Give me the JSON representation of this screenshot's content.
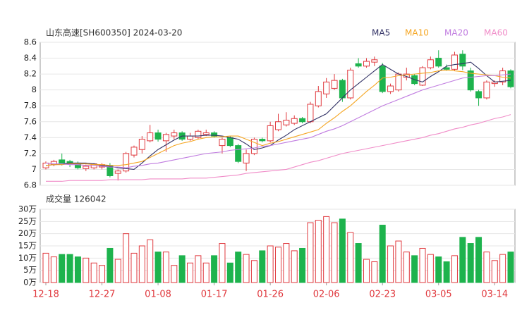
{
  "chart_data": [
    {
      "type": "candlestick",
      "title": "山东高速[SH600350] 2024-03-20",
      "categories": [
        "12-18",
        null,
        null,
        null,
        null,
        null,
        null,
        "12-27",
        null,
        null,
        null,
        null,
        null,
        null,
        "01-08",
        null,
        null,
        null,
        null,
        null,
        null,
        "01-17",
        null,
        null,
        null,
        null,
        null,
        null,
        "01-26",
        null,
        null,
        null,
        null,
        null,
        null,
        "02-06",
        null,
        null,
        null,
        null,
        null,
        null,
        "02-23",
        null,
        null,
        null,
        null,
        null,
        null,
        "03-05",
        null,
        null,
        null,
        null,
        null,
        null,
        "03-14",
        null,
        null
      ],
      "open": [
        7.02,
        7.06,
        7.12,
        7.1,
        7.08,
        7.01,
        7.02,
        7.03,
        7.05,
        6.95,
        6.98,
        7.18,
        7.25,
        7.36,
        7.46,
        7.36,
        7.42,
        7.46,
        7.38,
        7.4,
        7.44,
        7.46,
        7.3,
        7.4,
        7.3,
        7.08,
        7.2,
        7.38,
        7.36,
        7.5,
        7.56,
        7.58,
        7.64,
        7.6,
        7.8,
        7.95,
        8.02,
        8.12,
        7.9,
        8.33,
        8.3,
        8.35,
        8.3,
        7.98,
        8.0,
        8.16,
        8.18,
        8.06,
        8.28,
        8.4,
        8.28,
        8.26,
        8.45,
        8.24,
        7.98,
        7.9,
        8.08,
        8.1,
        8.24
      ],
      "high": [
        7.1,
        7.12,
        7.2,
        7.12,
        7.1,
        7.06,
        7.08,
        7.08,
        7.08,
        7.0,
        7.22,
        7.3,
        7.42,
        7.56,
        7.5,
        7.46,
        7.5,
        7.48,
        7.46,
        7.5,
        7.5,
        7.48,
        7.4,
        7.42,
        7.32,
        7.25,
        7.4,
        7.4,
        7.6,
        7.7,
        7.72,
        7.68,
        7.66,
        7.85,
        8.05,
        8.15,
        8.2,
        8.14,
        8.28,
        8.4,
        8.4,
        8.42,
        8.34,
        8.08,
        8.22,
        8.28,
        8.2,
        8.3,
        8.42,
        8.5,
        8.32,
        8.48,
        8.5,
        8.28,
        8.0,
        8.12,
        8.12,
        8.28,
        8.26
      ],
      "low": [
        7.0,
        7.04,
        7.05,
        7.03,
        7.0,
        6.98,
        7.0,
        7.0,
        6.9,
        6.86,
        6.96,
        7.15,
        7.2,
        7.34,
        7.35,
        7.22,
        7.38,
        7.36,
        7.36,
        7.38,
        7.42,
        7.4,
        7.2,
        7.28,
        7.08,
        6.98,
        7.18,
        7.34,
        7.34,
        7.48,
        7.54,
        7.56,
        7.58,
        7.58,
        7.78,
        7.9,
        8.0,
        7.85,
        7.88,
        8.28,
        8.28,
        8.3,
        7.96,
        7.95,
        7.98,
        8.12,
        8.06,
        8.05,
        8.26,
        8.28,
        8.24,
        8.24,
        8.25,
        7.98,
        7.8,
        7.88,
        8.04,
        8.06,
        8.02
      ],
      "close": [
        7.08,
        7.1,
        7.08,
        7.07,
        7.02,
        7.04,
        7.07,
        7.06,
        6.92,
        6.98,
        7.2,
        7.28,
        7.38,
        7.46,
        7.38,
        7.44,
        7.46,
        7.38,
        7.42,
        7.48,
        7.46,
        7.42,
        7.38,
        7.3,
        7.1,
        7.2,
        7.38,
        7.36,
        7.55,
        7.6,
        7.62,
        7.64,
        7.6,
        7.82,
        7.98,
        8.1,
        8.12,
        7.9,
        8.25,
        8.3,
        8.36,
        8.38,
        7.98,
        8.05,
        8.2,
        8.2,
        8.08,
        8.28,
        8.38,
        8.3,
        8.26,
        8.44,
        8.3,
        8.0,
        7.9,
        8.1,
        8.1,
        8.24,
        8.04
      ],
      "up_color": "#e0393e",
      "down_color": "#1db34d",
      "series": [
        {
          "name": "MA5",
          "color": "#333366",
          "values": [
            7.05,
            7.06,
            7.07,
            7.08,
            7.08,
            7.08,
            7.07,
            7.05,
            7.04,
            7.02,
            7.01,
            7.0,
            7.08,
            7.17,
            7.25,
            7.31,
            7.37,
            7.42,
            7.42,
            7.42,
            7.43,
            7.43,
            7.42,
            7.4,
            7.38,
            7.32,
            7.25,
            7.27,
            7.3,
            7.37,
            7.43,
            7.5,
            7.55,
            7.6,
            7.65,
            7.7,
            7.8,
            7.9,
            8.0,
            8.08,
            8.16,
            8.24,
            8.32,
            8.26,
            8.2,
            8.17,
            8.13,
            8.1,
            8.17,
            8.23,
            8.3,
            8.32,
            8.33,
            8.35,
            8.27,
            8.18,
            8.1,
            8.11,
            8.12
          ]
        },
        {
          "name": "MA10",
          "color": "#f5a623",
          "values": [
            7.05,
            7.06,
            7.06,
            7.07,
            7.07,
            7.07,
            7.06,
            7.06,
            7.05,
            7.05,
            7.06,
            7.08,
            7.1,
            7.15,
            7.2,
            7.25,
            7.3,
            7.33,
            7.35,
            7.38,
            7.4,
            7.41,
            7.41,
            7.42,
            7.42,
            7.38,
            7.34,
            7.3,
            7.33,
            7.35,
            7.38,
            7.41,
            7.44,
            7.47,
            7.5,
            7.58,
            7.65,
            7.73,
            7.8,
            7.89,
            7.98,
            8.06,
            8.15,
            8.16,
            8.18,
            8.19,
            8.2,
            8.21,
            8.22,
            8.24,
            8.25,
            8.24,
            8.23,
            8.21,
            8.2,
            8.19,
            8.18,
            8.16,
            8.15
          ]
        },
        {
          "name": "MA20",
          "color": "#c07ce0",
          "values": [
            7.08,
            7.07,
            7.07,
            7.06,
            7.06,
            7.05,
            7.05,
            7.04,
            7.03,
            7.03,
            7.02,
            7.04,
            7.05,
            7.07,
            7.08,
            7.1,
            7.12,
            7.14,
            7.16,
            7.18,
            7.2,
            7.21,
            7.22,
            7.24,
            7.25,
            7.26,
            7.27,
            7.29,
            7.3,
            7.32,
            7.34,
            7.36,
            7.38,
            7.4,
            7.44,
            7.48,
            7.51,
            7.55,
            7.6,
            7.65,
            7.7,
            7.75,
            7.8,
            7.84,
            7.88,
            7.92,
            7.96,
            8.0,
            8.03,
            8.06,
            8.09,
            8.12,
            8.15,
            8.16,
            8.17,
            8.18,
            8.18,
            8.19,
            8.2
          ]
        },
        {
          "name": "MA60",
          "color": "#f08cc8",
          "values": [
            6.85,
            6.85,
            6.85,
            6.86,
            6.86,
            6.86,
            6.86,
            6.86,
            6.87,
            6.87,
            6.87,
            6.87,
            6.87,
            6.88,
            6.88,
            6.88,
            6.88,
            6.88,
            6.89,
            6.89,
            6.89,
            6.9,
            6.91,
            6.92,
            6.93,
            6.95,
            6.96,
            6.97,
            6.98,
            6.99,
            7.0,
            7.03,
            7.06,
            7.09,
            7.11,
            7.14,
            7.17,
            7.2,
            7.22,
            7.24,
            7.26,
            7.28,
            7.3,
            7.32,
            7.34,
            7.36,
            7.38,
            7.4,
            7.43,
            7.45,
            7.48,
            7.51,
            7.53,
            7.56,
            7.58,
            7.61,
            7.64,
            7.66,
            7.69
          ]
        }
      ],
      "ylim": [
        6.8,
        8.6
      ],
      "yticks": [
        6.8,
        7,
        7.2,
        7.4,
        7.6,
        7.8,
        8,
        8.2,
        8.4,
        8.6
      ],
      "grid": true
    },
    {
      "type": "bar",
      "title": "成交量 126042",
      "values": [
        12,
        10.5,
        11.5,
        11.5,
        10.5,
        10,
        8,
        7,
        14,
        9.5,
        20,
        12,
        15,
        17.5,
        12.5,
        12.5,
        7,
        11,
        8,
        11,
        8,
        11,
        16,
        8,
        12.5,
        11.5,
        9,
        13,
        15,
        14.5,
        16,
        13,
        14,
        24.5,
        25.5,
        27,
        24.5,
        26,
        20.5,
        16,
        9.5,
        8.5,
        23.5,
        15,
        17,
        12.5,
        11,
        14,
        11.5,
        10.5,
        8.5,
        11,
        18.5,
        16,
        18.5,
        12.5,
        9,
        11.5,
        12.5
      ],
      "ylim": [
        0,
        30
      ],
      "yticks": [
        {
          "value": 0,
          "label": "0万"
        },
        {
          "value": 5,
          "label": "5万"
        },
        {
          "value": 10,
          "label": "10万"
        },
        {
          "value": 15,
          "label": "15万"
        },
        {
          "value": 20,
          "label": "20万"
        },
        {
          "value": 25,
          "label": "25万"
        },
        {
          "value": 30,
          "label": "30万"
        }
      ],
      "grid": true
    }
  ]
}
